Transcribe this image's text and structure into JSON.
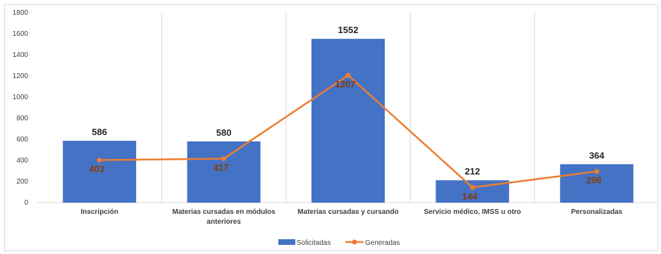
{
  "chart_data": {
    "type": "bar",
    "categories": [
      "Inscripción",
      "Materias cursadas en módulos anteriores",
      "Materias cursadas y cursando",
      "Servicio médico, IMSS u otro",
      "Personalizadas"
    ],
    "category_lines": [
      [
        "Inscripción"
      ],
      [
        "Materias cursadas en módulos",
        "anteriores"
      ],
      [
        "Materias cursadas y cursando"
      ],
      [
        "Servicio médico, IMSS u otro"
      ],
      [
        "Personalizadas"
      ]
    ],
    "series": [
      {
        "name": "Solicitadas",
        "type": "bar",
        "color": "#4472c4",
        "values": [
          586,
          580,
          1552,
          212,
          364
        ]
      },
      {
        "name": "Generadas",
        "type": "line",
        "color": "#ed7d31",
        "values": [
          403,
          417,
          1207,
          144,
          296
        ]
      }
    ],
    "ylim": [
      0,
      1800
    ],
    "yticks": [
      0,
      200,
      400,
      600,
      800,
      1000,
      1200,
      1400,
      1600,
      1800
    ],
    "title": "",
    "xlabel": "",
    "ylabel": "",
    "grid": "vertical category separators",
    "legend": "bottom-center"
  }
}
